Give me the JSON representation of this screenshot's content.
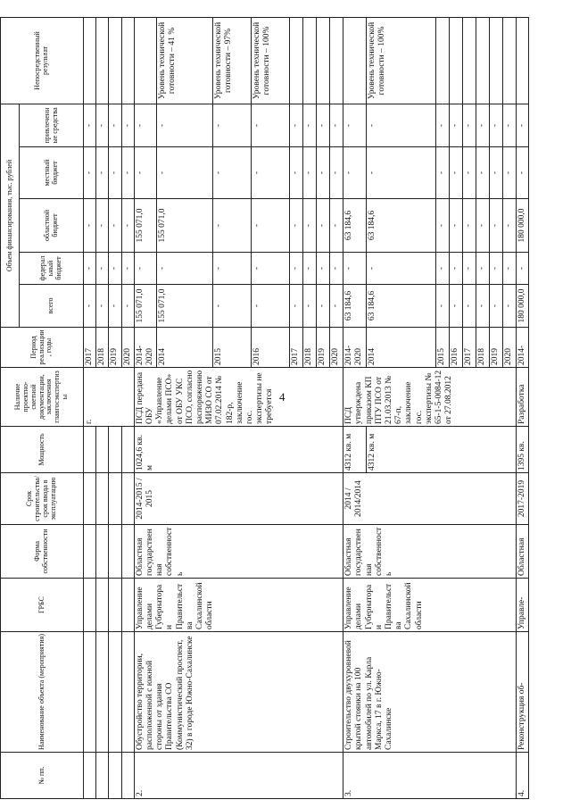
{
  "page_number": "4",
  "headers": {
    "num": "№ пп.",
    "name": "Наименование объекта (мероприятия)",
    "grbs": "ГРБС",
    "ownership": "Форма собственности",
    "term": "Срок строительства/срок ввода в эксплуатацию",
    "capacity": "Мощность",
    "psd": "Наличие проектно-сметной документации, заключения главгосэкспертизы",
    "period": "Период реализации, годы",
    "volume": "Объем финансирования, тыс. рублей",
    "total": "всего",
    "federal": "федеральный бюджет",
    "regional": "областной бюджет",
    "local": "местный бюджет",
    "other": "привлеченные средства",
    "result": "Непосредственный результат"
  },
  "top": {
    "psd_text": "г.",
    "years": [
      "2017",
      "2018",
      "2019",
      "2020"
    ],
    "dash": "-"
  },
  "row2": {
    "num": "2.",
    "name": "Обустройство территории, расположенной с южной стороны от здания Правительства СО (Коммунистический проспект, 32) в городе Южно-Сахалинске",
    "grbs": "Управление делами Губернатора и Правительства Сахалинской области",
    "ownership": "Областная государственная собственность",
    "term": "2014-2015 / 2015",
    "capacity": "1024,6 кв. м",
    "psd": "ПСД передана ОБУ «Управление делами ПСО» от ОБУ УКС ПСО, согласно распоряжению МИЗО СО от 07.02.2014 № 182-р, заключение гос. экспертизы не требуется",
    "periods": [
      "2014-2020",
      "2014",
      "2015",
      "2016",
      "2017",
      "2018",
      "2019",
      "2020"
    ],
    "total": "155 071,0",
    "regional": "155 071,0",
    "results": [
      "Уровень технической готовности – 41 %",
      "Уровень технической готовности – 97%",
      "Уровень технической готовности – 100%"
    ],
    "dash": "-"
  },
  "row3": {
    "num": "3.",
    "name": "Строительство двухуровневой крытой стоянки на 100 автомобилей по ул. Карла Маркса, 17 в г. Южно-Сахалинске",
    "grbs": "Управление делами Губернатора и Правительства Сахалинской области",
    "ownership": "Областная государственная собственность",
    "term": "2014 / 2014/2014",
    "capacity": "4312 кв. м",
    "capacity2": "4312 кв. м",
    "psd": "ПСД утверждена приказом КП ПТУ ПСО от 21.03.2013 № 67-п, заключение гос. экспертизы № 65-1-5-0084-12 от 27.08.2012",
    "periods": [
      "2014-2020",
      "2014",
      "2015",
      "2016",
      "2017",
      "2018",
      "2019",
      "2020"
    ],
    "total": "63 184,6",
    "regional": "63 184,6",
    "result": "Уровень технической готовности – 100%",
    "dash": "-"
  },
  "row4": {
    "num": "4.",
    "name": "Реконструкция об-",
    "grbs": "Управле-",
    "ownership": "Областная",
    "term": "2017-2019",
    "capacity": "1395 кв.",
    "psd": "Разработка",
    "period": "2014-",
    "total": "180 000,0",
    "regional": "180 000,0",
    "dash": "-"
  }
}
